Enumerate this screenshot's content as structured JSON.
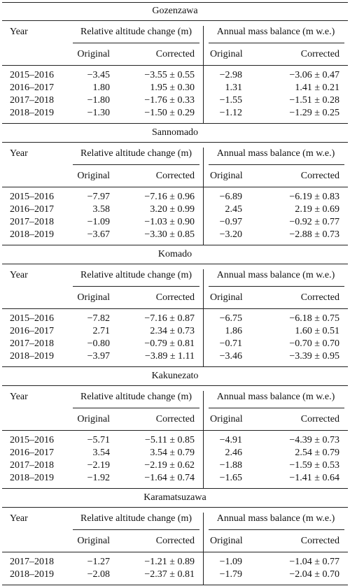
{
  "sections": [
    {
      "title": "Gozenzawa",
      "year_header": "Year",
      "group_headers": [
        "Relative altitude change (m)",
        "Annual mass balance (m w.e.)"
      ],
      "subheaders": [
        "Original",
        "Corrected",
        "Original",
        "Corrected"
      ],
      "rows": [
        [
          "2015–2016",
          "−3.45",
          "−3.55 ± 0.55",
          "−2.98",
          "−3.06 ± 0.47"
        ],
        [
          "2016–2017",
          "1.80",
          "1.95 ± 0.30",
          "1.31",
          "1.41 ± 0.21"
        ],
        [
          "2017–2018",
          "−1.80",
          "−1.76 ± 0.33",
          "−1.55",
          "−1.51 ± 0.28"
        ],
        [
          "2018–2019",
          "−1.30",
          "−1.50 ± 0.29",
          "−1.12",
          "−1.29 ± 0.25"
        ]
      ]
    },
    {
      "title": "Sannomado",
      "year_header": "Year",
      "group_headers": [
        "Relative altitude change (m)",
        "Annual mass balance (m w.e.)"
      ],
      "subheaders": [
        "Original",
        "Corrected",
        "Original",
        "Corrected"
      ],
      "rows": [
        [
          "2015–2016",
          "−7.97",
          "−7.16 ± 0.96",
          "−6.89",
          "−6.19 ± 0.83"
        ],
        [
          "2016–2017",
          "3.58",
          "3.20 ± 0.99",
          "2.45",
          "2.19 ± 0.69"
        ],
        [
          "2017–2018",
          "−1.09",
          "−1.03 ± 0.90",
          "−0.97",
          "−0.92 ± 0.77"
        ],
        [
          "2018–2019",
          "−3.67",
          "−3.30 ± 0.85",
          "−3.20",
          "−2.88 ± 0.73"
        ]
      ]
    },
    {
      "title": "Komado",
      "year_header": "Year",
      "group_headers": [
        "Relative altitude change (m)",
        "Annual mass balance (m w.e.)"
      ],
      "subheaders": [
        "Original",
        "Corrected",
        "Original",
        "Corrected"
      ],
      "rows": [
        [
          "2015–2016",
          "−7.82",
          "−7.16 ± 0.87",
          "−6.75",
          "−6.18 ± 0.75"
        ],
        [
          "2016–2017",
          "2.71",
          "2.34 ± 0.73",
          "1.86",
          "1.60 ± 0.51"
        ],
        [
          "2017–2018",
          "−0.80",
          "−0.79 ± 0.81",
          "−0.71",
          "−0.70 ± 0.70"
        ],
        [
          "2018–2019",
          "−3.97",
          "−3.89 ± 1.11",
          "−3.46",
          "−3.39 ± 0.95"
        ]
      ]
    },
    {
      "title": "Kakunezato",
      "year_header": "Year",
      "group_headers": [
        "Relative altitude change (m)",
        "Annual mass balance (m w.e.)"
      ],
      "subheaders": [
        "Original",
        "Corrected",
        "Original",
        "Corrected"
      ],
      "rows": [
        [
          "2015–2016",
          "−5.71",
          "−5.11 ± 0.85",
          "−4.91",
          "−4.39 ± 0.73"
        ],
        [
          "2016–2017",
          "3.54",
          "3.54 ± 0.79",
          "2.46",
          "2.54 ± 0.79"
        ],
        [
          "2017–2018",
          "−2.19",
          "−2.19 ± 0.62",
          "−1.88",
          "−1.59 ± 0.53"
        ],
        [
          "2018–2019",
          "−1.92",
          "−1.64 ± 0.74",
          "−1.65",
          "−1.41 ± 0.64"
        ]
      ]
    },
    {
      "title": "Karamatsuzawa",
      "year_header": "Year",
      "group_headers": [
        "Relative altitude change (m)",
        "Annual mass balance (m w.e.)"
      ],
      "subheaders": [
        "Original",
        "Corrected",
        "Original",
        "Corrected"
      ],
      "rows": [
        [
          "2017–2018",
          "−1.27",
          "−1.21 ± 0.89",
          "−1.09",
          "−1.04 ± 0.77"
        ],
        [
          "2018–2019",
          "−2.08",
          "−2.37 ± 0.81",
          "−1.79",
          "−2.04 ± 0.70"
        ]
      ]
    }
  ]
}
